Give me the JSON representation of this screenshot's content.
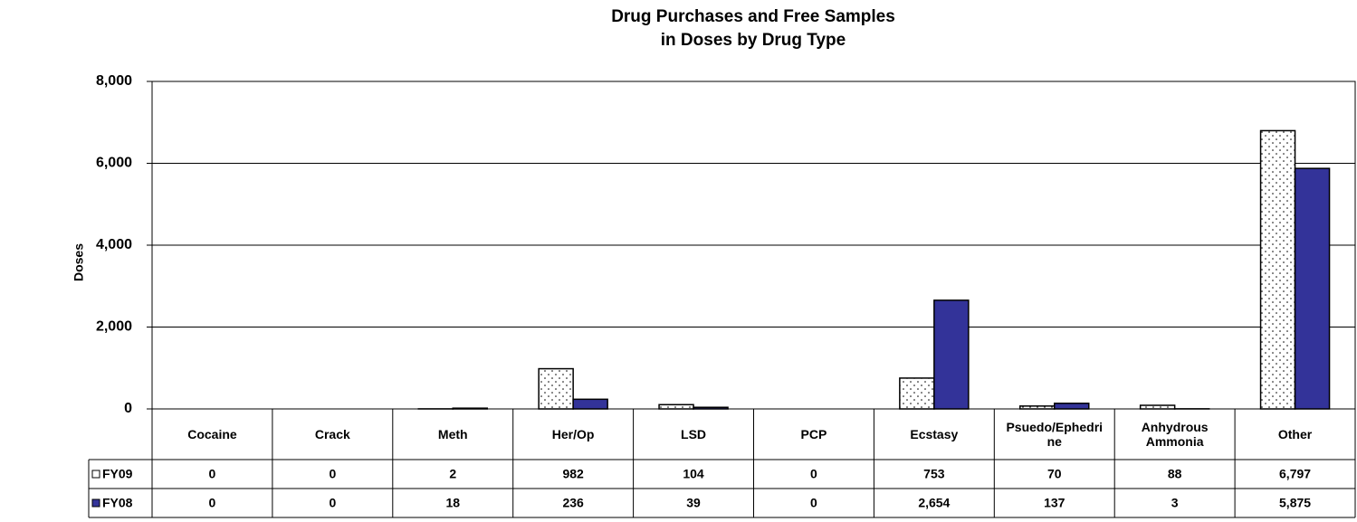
{
  "chart_data": {
    "type": "bar",
    "title": [
      "Drug Purchases and Free Samples",
      "in Doses by Drug Type"
    ],
    "y_label": "Doses",
    "categories": [
      "Cocaine",
      "Crack",
      "Meth",
      "Her/Op",
      "LSD",
      "PCP",
      "Ecstasy",
      "Psuedo/Ephedrine",
      "Anhydrous Ammonia",
      "Other"
    ],
    "series": [
      {
        "name": "FY09",
        "color": "#ffffff",
        "pattern": "dots",
        "values": [
          0,
          0,
          2,
          982,
          104,
          0,
          753,
          70,
          88,
          6797
        ],
        "value_labels": [
          "0",
          "0",
          "2",
          "982",
          "104",
          "0",
          "753",
          "70",
          "88",
          "6,797"
        ]
      },
      {
        "name": "FY08",
        "color": "#333399",
        "values": [
          0,
          0,
          18,
          236,
          39,
          0,
          2654,
          137,
          3,
          5875
        ],
        "value_labels": [
          "0",
          "0",
          "18",
          "236",
          "39",
          "0",
          "2,654",
          "137",
          "3",
          "5,875"
        ]
      }
    ],
    "ylim": [
      0,
      8000
    ],
    "yticks": [
      0,
      {
        "value": 2000,
        "label": "2,000"
      },
      {
        "value": 4000,
        "label": "4,000"
      },
      {
        "value": 6000,
        "label": "6,000"
      },
      {
        "value": 8000,
        "label": "8,000"
      }
    ],
    "grid": true
  }
}
